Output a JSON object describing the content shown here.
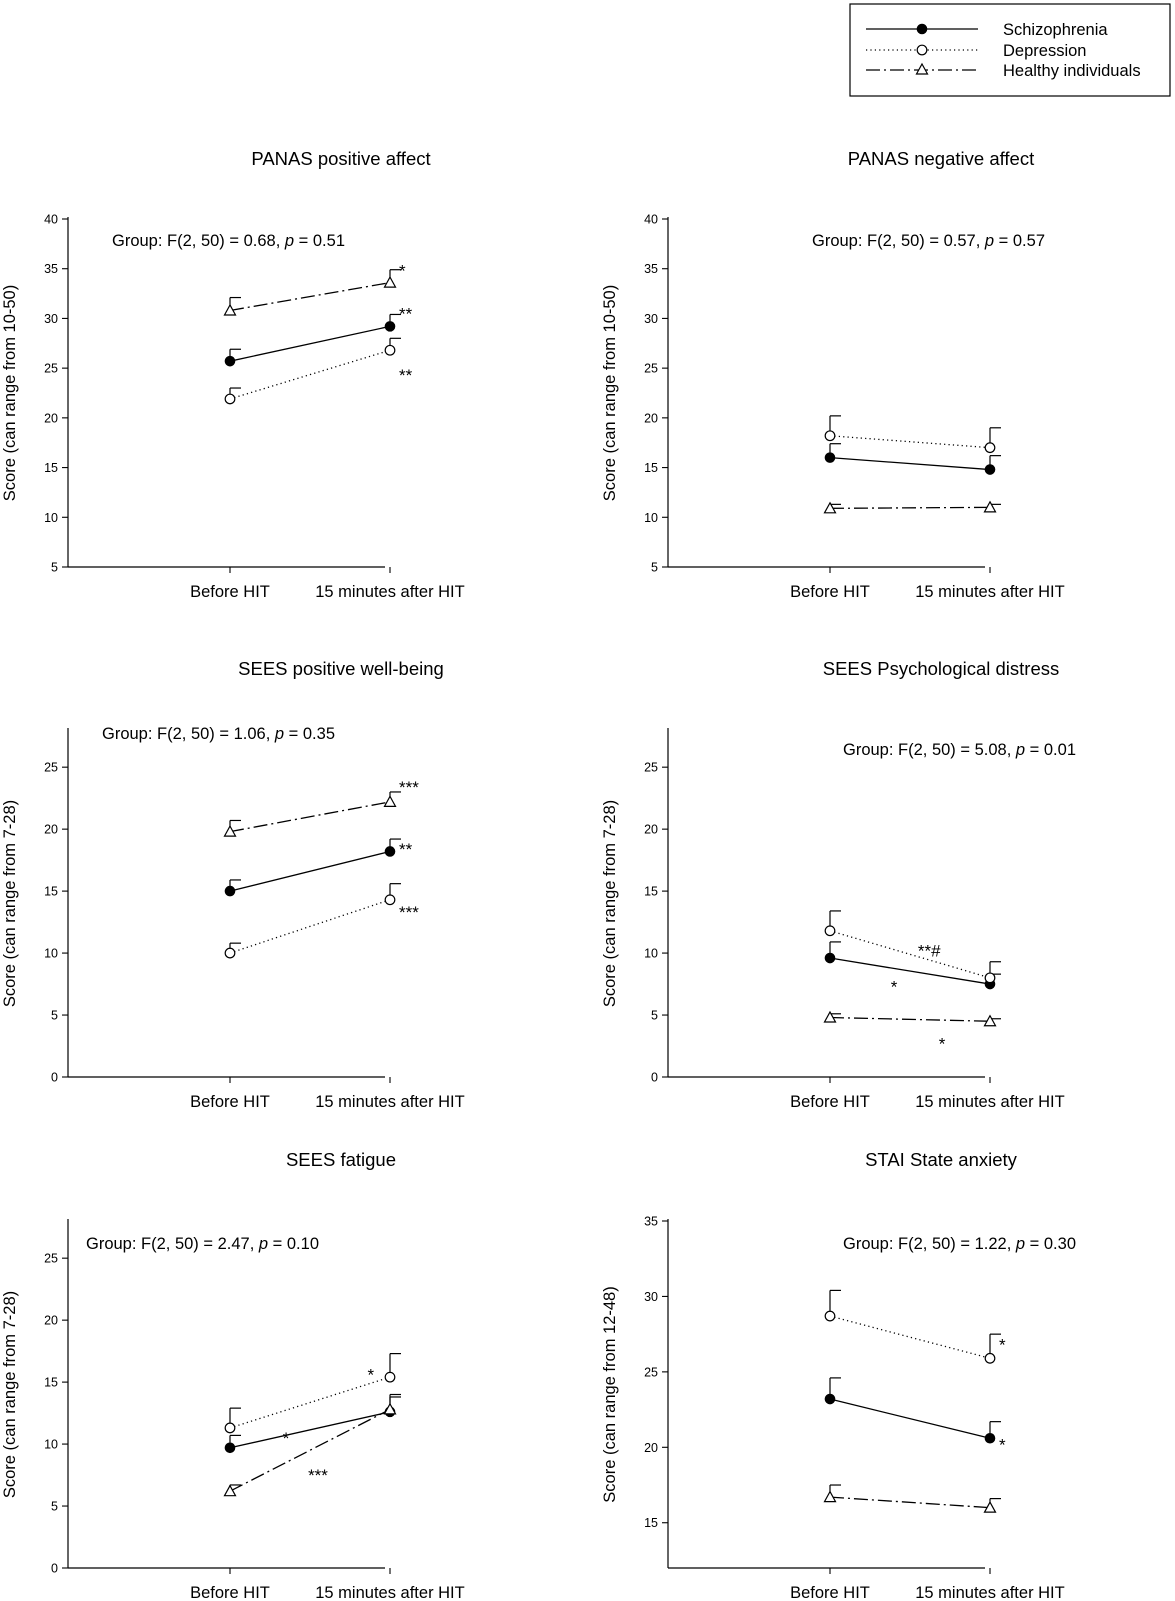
{
  "legend": {
    "entries": [
      {
        "label": "Schizophrenia",
        "marker": "filled-circle",
        "line": "solid"
      },
      {
        "label": "Depression",
        "marker": "open-circle",
        "line": "dotted"
      },
      {
        "label": "Healthy individuals",
        "marker": "open-triangle",
        "line": "dash-dot"
      }
    ]
  },
  "chart_data": [
    {
      "type": "line",
      "title": "PANAS positive affect",
      "ylabel": "Score (can range from 10-50)",
      "categories": [
        "Before HIT",
        "15 minutes after HIT"
      ],
      "ylim": [
        5,
        40
      ],
      "yticks": [
        5,
        10,
        15,
        20,
        25,
        30,
        35,
        40
      ],
      "stat": {
        "pre": "Group: F(2, 50) = 0.68, ",
        "p": "p",
        "post": " = 0.51"
      },
      "series": [
        {
          "name": "Schizophrenia",
          "values": [
            25.7,
            29.2
          ],
          "errors": [
            1.2,
            1.2
          ]
        },
        {
          "name": "Depression",
          "values": [
            21.9,
            26.8
          ],
          "errors": [
            1.1,
            1.2
          ]
        },
        {
          "name": "Healthy individuals",
          "values": [
            30.8,
            33.6
          ],
          "errors": [
            1.3,
            1.3
          ]
        }
      ],
      "annotations": [
        {
          "text": "*",
          "x": 1,
          "y": 34.8
        },
        {
          "text": "**",
          "x": 1,
          "y": 30.5
        },
        {
          "text": "**",
          "x": 1,
          "y": 24.3
        }
      ]
    },
    {
      "type": "line",
      "title": "PANAS negative affect",
      "ylabel": "Score (can range from 10-50)",
      "categories": [
        "Before HIT",
        "15 minutes after HIT"
      ],
      "ylim": [
        5,
        40
      ],
      "yticks": [
        5,
        10,
        15,
        20,
        25,
        30,
        35,
        40
      ],
      "stat": {
        "pre": "Group: F(2, 50) = 0.57, ",
        "p": "p",
        "post": " = 0.57"
      },
      "series": [
        {
          "name": "Schizophrenia",
          "values": [
            16.0,
            14.8
          ],
          "errors": [
            1.4,
            1.4
          ]
        },
        {
          "name": "Depression",
          "values": [
            18.2,
            17.0
          ],
          "errors": [
            2.0,
            2.0
          ]
        },
        {
          "name": "Healthy individuals",
          "values": [
            10.9,
            11.0
          ],
          "errors": [
            0.4,
            0.3
          ]
        }
      ],
      "annotations": []
    },
    {
      "type": "line",
      "title": "SEES positive well-being",
      "ylabel": "Score (can range from 7-28)",
      "categories": [
        "Before HIT",
        "15 minutes after HIT"
      ],
      "ylim": [
        0,
        28
      ],
      "yticks": [
        0,
        5,
        10,
        15,
        20,
        25
      ],
      "stat": {
        "pre": "Group: F(2, 50) = 1.06, ",
        "p": "p",
        "post": " = 0.35"
      },
      "series": [
        {
          "name": "Schizophrenia",
          "values": [
            15.0,
            18.2
          ],
          "errors": [
            0.9,
            1.0
          ]
        },
        {
          "name": "Depression",
          "values": [
            10.0,
            14.3
          ],
          "errors": [
            0.8,
            1.3
          ]
        },
        {
          "name": "Healthy individuals",
          "values": [
            19.8,
            22.2
          ],
          "errors": [
            0.9,
            0.8
          ]
        }
      ],
      "annotations": [
        {
          "text": "***",
          "x": 1,
          "y": 23.4
        },
        {
          "text": "**",
          "x": 1,
          "y": 18.4
        },
        {
          "text": "***",
          "x": 1,
          "y": 13.3
        }
      ]
    },
    {
      "type": "line",
      "title": "SEES Psychological distress",
      "ylabel": "Score (can range from 7-28)",
      "categories": [
        "Before HIT",
        "15 minutes after HIT"
      ],
      "ylim": [
        0,
        28
      ],
      "yticks": [
        0,
        5,
        10,
        15,
        20,
        25
      ],
      "stat": {
        "pre": "Group: F(2, 50) = 5.08, ",
        "p": "p",
        "post": " = 0.01"
      },
      "series": [
        {
          "name": "Schizophrenia",
          "values": [
            9.6,
            7.5
          ],
          "errors": [
            1.3,
            0.8
          ]
        },
        {
          "name": "Depression",
          "values": [
            11.8,
            8.0
          ],
          "errors": [
            1.6,
            1.3
          ]
        },
        {
          "name": "Healthy individuals",
          "values": [
            4.8,
            4.5
          ],
          "errors": [
            0.3,
            0.2
          ]
        }
      ],
      "annotations": [
        {
          "text": "**#",
          "x": 0.62,
          "y": 10.2
        },
        {
          "text": "*",
          "x": 0.4,
          "y": 7.3
        },
        {
          "text": "*",
          "x": 0.7,
          "y": 2.7
        }
      ]
    },
    {
      "type": "line",
      "title": "SEES fatigue",
      "ylabel": "Score (can range from 7-28)",
      "categories": [
        "Before HIT",
        "15 minutes after HIT"
      ],
      "ylim": [
        0,
        28
      ],
      "yticks": [
        0,
        5,
        10,
        15,
        20,
        25
      ],
      "stat": {
        "pre": "Group: F(2, 50) = 2.47, ",
        "p": "p",
        "post": " = 0.10"
      },
      "series": [
        {
          "name": "Schizophrenia",
          "values": [
            9.7,
            12.6
          ],
          "errors": [
            1.0,
            1.4
          ]
        },
        {
          "name": "Depression",
          "values": [
            11.3,
            15.4
          ],
          "errors": [
            1.6,
            1.9
          ]
        },
        {
          "name": "Healthy individuals",
          "values": [
            6.2,
            12.8
          ],
          "errors": [
            0.5,
            1.0
          ]
        }
      ],
      "annotations": [
        {
          "text": "*",
          "x": 0.88,
          "y": 15.6
        },
        {
          "text": "*",
          "x": 0.35,
          "y": 10.5
        },
        {
          "text": "***",
          "x": 0.55,
          "y": 7.5
        }
      ]
    },
    {
      "type": "line",
      "title": "STAI State anxiety",
      "ylabel": "Score (can range from 12-48)",
      "categories": [
        "Before HIT",
        "15 minutes after HIT"
      ],
      "ylim": [
        12,
        35
      ],
      "yticks": [
        15,
        20,
        25,
        30,
        35
      ],
      "stat": {
        "pre": "Group: F(2, 50) = 1.22, ",
        "p": "p",
        "post": " = 0.30"
      },
      "series": [
        {
          "name": "Schizophrenia",
          "values": [
            23.2,
            20.6
          ],
          "errors": [
            1.4,
            1.1
          ]
        },
        {
          "name": "Depression",
          "values": [
            28.7,
            25.9
          ],
          "errors": [
            1.7,
            1.6
          ]
        },
        {
          "name": "Healthy individuals",
          "values": [
            16.7,
            16.0
          ],
          "errors": [
            0.8,
            0.6
          ]
        }
      ],
      "annotations": [
        {
          "text": "*",
          "x": 1,
          "y": 26.8
        },
        {
          "text": "*",
          "x": 1,
          "y": 20.2
        }
      ]
    }
  ]
}
